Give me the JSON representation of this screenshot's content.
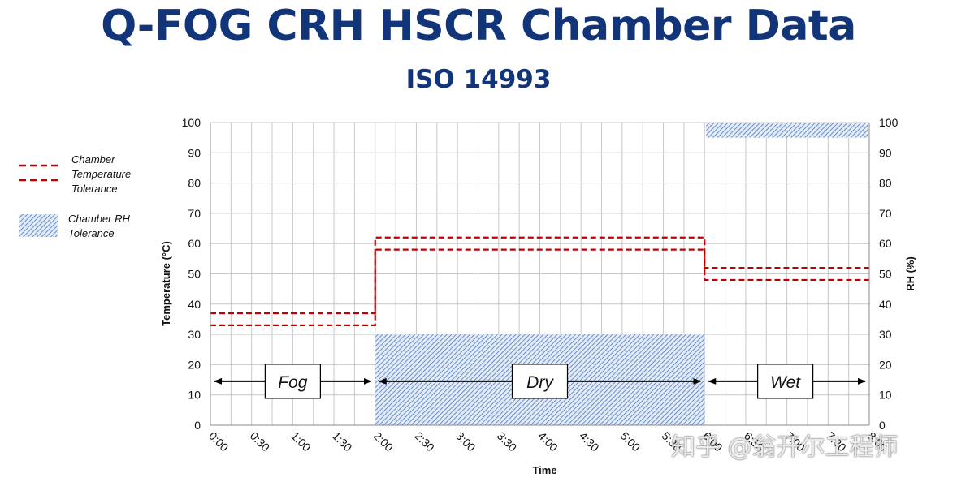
{
  "header": {
    "title": "Q-FOG CRH HSCR Chamber Data",
    "subtitle": "ISO 14993"
  },
  "legend": {
    "temp_line1": "Chamber",
    "temp_line2": "Temperature",
    "temp_line3": "Tolerance",
    "rh_line1": "Chamber RH",
    "rh_line2": "Tolerance"
  },
  "watermark": "知乎 @翁开尔工程师",
  "colors": {
    "temperature": "#c00000",
    "rh_fill": "#4a78c0",
    "box_border": "#000000",
    "grid": "#c8c8c8"
  },
  "chart_data": {
    "type": "line",
    "xlabel": "Time",
    "ylabel_left": "Temperature (°C)",
    "ylabel_right": "RH (%)",
    "x_ticks": [
      "0:00",
      "0:30",
      "1:00",
      "1:30",
      "2:00",
      "2:30",
      "3:00",
      "3:30",
      "4:00",
      "4:30",
      "5:00",
      "5:30",
      "6:00",
      "6:30",
      "7:00",
      "7:30",
      "8:00"
    ],
    "x_range_hours": [
      0,
      8
    ],
    "ylim": [
      0,
      100
    ],
    "y_ticks": [
      0,
      10,
      20,
      30,
      40,
      50,
      60,
      70,
      80,
      90,
      100
    ],
    "grid": true,
    "temperature_tolerance": [
      {
        "phase": "Fog",
        "start": "0:00",
        "end": "2:00",
        "lower": 33,
        "upper": 37
      },
      {
        "phase": "Dry",
        "start": "2:00",
        "end": "6:00",
        "lower": 58,
        "upper": 62
      },
      {
        "phase": "Wet",
        "start": "6:00",
        "end": "8:00",
        "lower": 48,
        "upper": 52
      }
    ],
    "rh_tolerance": [
      {
        "phase": "Dry",
        "start": "2:00",
        "end": "6:00",
        "lower": 0,
        "upper": 30
      },
      {
        "phase": "Wet",
        "start": "6:00",
        "end": "8:00",
        "lower": 95,
        "upper": 100
      }
    ],
    "phases": [
      {
        "label": "Fog",
        "start": "0:00",
        "end": "2:00"
      },
      {
        "label": "Dry",
        "start": "2:00",
        "end": "6:00"
      },
      {
        "label": "Wet",
        "start": "6:00",
        "end": "8:00"
      }
    ]
  }
}
